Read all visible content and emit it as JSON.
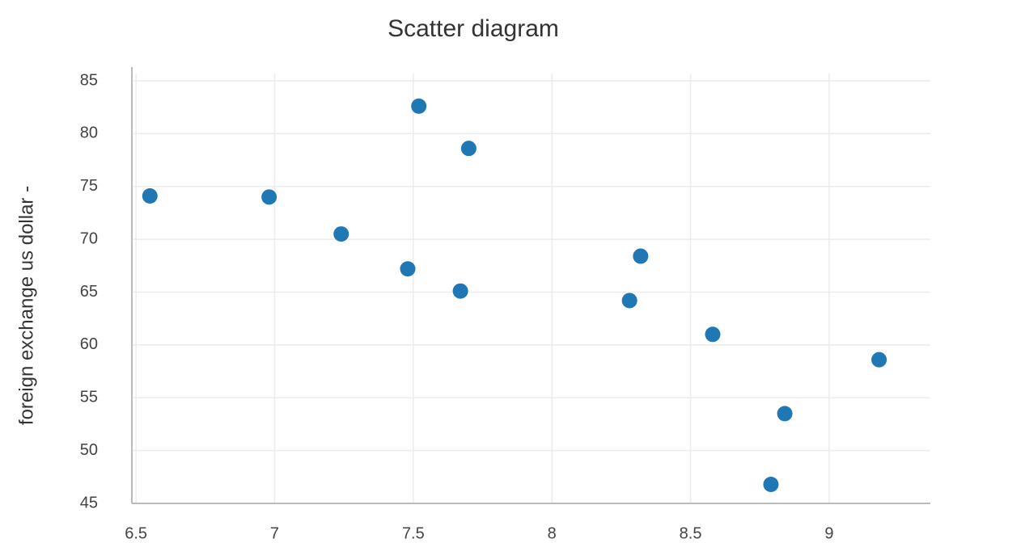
{
  "chart_data": {
    "type": "scatter",
    "title": "Scatter diagram",
    "y_label": "foreign exchange us dollar -",
    "x": [
      6.55,
      6.98,
      7.24,
      7.48,
      7.52,
      7.67,
      7.7,
      8.28,
      8.32,
      8.58,
      8.79,
      8.84,
      9.18
    ],
    "series": [
      {
        "color": "#1f77b4",
        "values": [
          74.1,
          74.0,
          70.5,
          67.2,
          82.6,
          65.1,
          78.6,
          64.2,
          68.4,
          61.0,
          46.8,
          53.5,
          58.6
        ]
      }
    ],
    "xlim": [
      6.485,
      9.365
    ],
    "xticks": [
      6.5,
      7,
      7.5,
      8,
      8.5,
      9
    ],
    "ylim": [
      45,
      86.3
    ],
    "yticks": [
      45,
      50,
      55,
      60,
      65,
      70,
      75,
      80,
      85
    ],
    "grid": true
  }
}
